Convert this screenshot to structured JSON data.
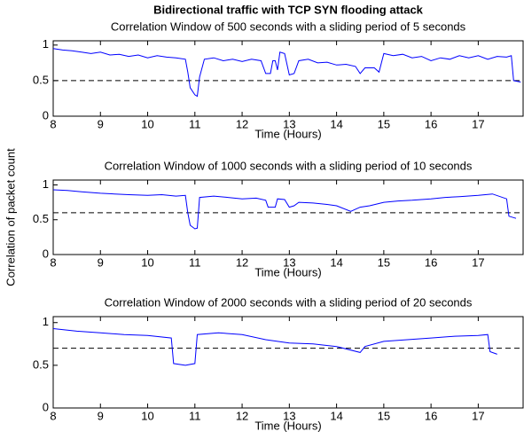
{
  "title": "Bidirectional traffic with TCP SYN flooding attack",
  "ylabel": "Correlation of packet count",
  "chart_data": [
    {
      "type": "line",
      "subtitle": "Correlation Window of 500 seconds with a sliding period of 5 seconds",
      "xlabel": "Time (Hours)",
      "xlim": [
        8,
        17.95
      ],
      "ylim": [
        0,
        1.06
      ],
      "xticks": [
        8,
        9,
        10,
        11,
        12,
        13,
        14,
        15,
        16,
        17
      ],
      "yticks": [
        0,
        0.5,
        1
      ],
      "reference_line": {
        "value": 0.5,
        "style": "dashed",
        "color": "#000000"
      },
      "x": [
        8.0,
        8.2,
        8.4,
        8.6,
        8.8,
        9.0,
        9.2,
        9.4,
        9.6,
        9.8,
        10.0,
        10.2,
        10.4,
        10.6,
        10.8,
        10.85,
        10.9,
        11.0,
        11.05,
        11.1,
        11.2,
        11.4,
        11.6,
        11.8,
        12.0,
        12.2,
        12.4,
        12.5,
        12.6,
        12.65,
        12.7,
        12.75,
        12.8,
        12.9,
        13.0,
        13.1,
        13.2,
        13.4,
        13.6,
        13.8,
        14.0,
        14.2,
        14.4,
        14.5,
        14.6,
        14.8,
        14.9,
        15.0,
        15.2,
        15.4,
        15.6,
        15.8,
        16.0,
        16.2,
        16.4,
        16.6,
        16.8,
        17.0,
        17.2,
        17.4,
        17.6,
        17.7,
        17.75,
        17.9
      ],
      "series": [
        {
          "color": "#0000ff",
          "values": [
            0.95,
            0.93,
            0.92,
            0.9,
            0.88,
            0.9,
            0.86,
            0.87,
            0.84,
            0.86,
            0.82,
            0.85,
            0.83,
            0.82,
            0.8,
            0.62,
            0.4,
            0.3,
            0.28,
            0.55,
            0.8,
            0.82,
            0.78,
            0.8,
            0.77,
            0.8,
            0.78,
            0.6,
            0.6,
            0.78,
            0.78,
            0.65,
            0.9,
            0.88,
            0.58,
            0.6,
            0.78,
            0.8,
            0.75,
            0.76,
            0.72,
            0.73,
            0.7,
            0.6,
            0.68,
            0.68,
            0.62,
            0.88,
            0.85,
            0.87,
            0.82,
            0.84,
            0.78,
            0.82,
            0.8,
            0.85,
            0.82,
            0.85,
            0.8,
            0.84,
            0.83,
            0.85,
            0.5,
            0.48
          ]
        }
      ]
    },
    {
      "type": "line",
      "subtitle": "Correlation Window of 1000 seconds with a sliding period of 10 seconds",
      "xlabel": "Time (Hours)",
      "xlim": [
        8,
        17.95
      ],
      "ylim": [
        0,
        1.07
      ],
      "xticks": [
        8,
        9,
        10,
        11,
        12,
        13,
        14,
        15,
        16,
        17
      ],
      "yticks": [
        0,
        0.5,
        1
      ],
      "reference_line": {
        "value": 0.6,
        "style": "dashed",
        "color": "#000000"
      },
      "x": [
        8.0,
        8.3,
        8.6,
        9.0,
        9.3,
        9.6,
        10.0,
        10.3,
        10.6,
        10.8,
        10.85,
        10.9,
        11.0,
        11.05,
        11.1,
        11.4,
        11.7,
        12.0,
        12.3,
        12.5,
        12.55,
        12.7,
        12.75,
        12.9,
        13.0,
        13.1,
        13.2,
        13.5,
        13.8,
        14.0,
        14.3,
        14.5,
        14.7,
        15.0,
        15.3,
        15.6,
        16.0,
        16.3,
        16.6,
        17.0,
        17.3,
        17.6,
        17.65,
        17.8
      ],
      "series": [
        {
          "color": "#0000ff",
          "values": [
            0.93,
            0.92,
            0.9,
            0.88,
            0.87,
            0.86,
            0.85,
            0.86,
            0.84,
            0.85,
            0.6,
            0.42,
            0.37,
            0.38,
            0.82,
            0.84,
            0.82,
            0.8,
            0.81,
            0.78,
            0.68,
            0.68,
            0.8,
            0.79,
            0.68,
            0.7,
            0.75,
            0.74,
            0.72,
            0.7,
            0.62,
            0.68,
            0.7,
            0.75,
            0.77,
            0.78,
            0.8,
            0.82,
            0.83,
            0.85,
            0.87,
            0.8,
            0.55,
            0.52
          ]
        }
      ]
    },
    {
      "type": "line",
      "subtitle": "Correlation Window of 2000 seconds with a sliding period of 20 seconds",
      "xlabel": "Time (Hours)",
      "xlim": [
        8,
        17.95
      ],
      "ylim": [
        0,
        1.07
      ],
      "xticks": [
        8,
        9,
        10,
        11,
        12,
        13,
        14,
        15,
        16,
        17
      ],
      "yticks": [
        0,
        0.5,
        1
      ],
      "reference_line": {
        "value": 0.7,
        "style": "dashed",
        "color": "#000000"
      },
      "x": [
        8.0,
        8.5,
        9.0,
        9.5,
        10.0,
        10.5,
        10.55,
        10.8,
        11.0,
        11.05,
        11.5,
        12.0,
        12.5,
        13.0,
        13.5,
        14.0,
        14.5,
        14.6,
        15.0,
        15.5,
        16.0,
        16.5,
        17.0,
        17.2,
        17.25,
        17.4
      ],
      "series": [
        {
          "color": "#0000ff",
          "values": [
            0.93,
            0.9,
            0.88,
            0.86,
            0.85,
            0.82,
            0.52,
            0.5,
            0.52,
            0.86,
            0.88,
            0.86,
            0.8,
            0.76,
            0.75,
            0.72,
            0.65,
            0.72,
            0.78,
            0.8,
            0.82,
            0.84,
            0.85,
            0.86,
            0.66,
            0.63
          ]
        }
      ]
    }
  ]
}
